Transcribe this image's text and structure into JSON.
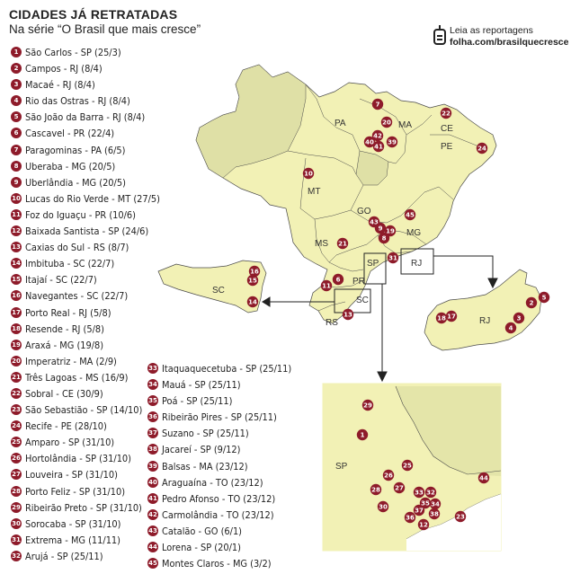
{
  "header": {
    "title": "CIDADES JÁ RETRATADAS",
    "subtitle": "Na série “O Brasil que mais cresce”",
    "link_label": "Leia as reportagens",
    "link_url": "folha.com/brasilquecresce"
  },
  "colors": {
    "marker": "#8e1b2a",
    "land": "#f2f1b5",
    "shade": "#e5e6ad",
    "stroke": "#3d3d3d"
  },
  "cities_left": [
    {
      "n": "1",
      "label": "São Carlos - SP (25/3)"
    },
    {
      "n": "2",
      "label": "Campos - RJ (8/4)"
    },
    {
      "n": "3",
      "label": "Macaé - RJ (8/4)"
    },
    {
      "n": "4",
      "label": "Rio das Ostras - RJ (8/4)"
    },
    {
      "n": "5",
      "label": "São João da Barra - RJ (8/4)"
    },
    {
      "n": "6",
      "label": "Cascavel - PR (22/4)"
    },
    {
      "n": "7",
      "label": "Paragominas - PA (6/5)"
    },
    {
      "n": "8",
      "label": "Uberaba - MG (20/5)"
    },
    {
      "n": "9",
      "label": "Uberlândia - MG (20/5)"
    },
    {
      "n": "10",
      "label": "Lucas do Rio Verde - MT (27/5)"
    },
    {
      "n": "11",
      "label": "Foz do Iguaçu - PR (10/6)"
    },
    {
      "n": "12",
      "label": "Baixada Santista - SP (24/6)"
    },
    {
      "n": "13",
      "label": "Caxias do Sul - RS (8/7)"
    },
    {
      "n": "14",
      "label": "Imbituba - SC (22/7)"
    },
    {
      "n": "15",
      "label": "Itajaí  - SC (22/7)"
    },
    {
      "n": "16",
      "label": "Navegantes - SC (22/7)"
    },
    {
      "n": "17",
      "label": "Porto Real - RJ (5/8)"
    },
    {
      "n": "18",
      "label": "Resende - RJ (5/8)"
    },
    {
      "n": "19",
      "label": "Araxá - MG (19/8)"
    },
    {
      "n": "20",
      "label": "Imperatriz - MA (2/9)"
    },
    {
      "n": "21",
      "label": "Três Lagoas - MS (16/9)"
    },
    {
      "n": "22",
      "label": "Sobral - CE (30/9)"
    },
    {
      "n": "23",
      "label": "São Sebastião - SP (14/10)"
    },
    {
      "n": "24",
      "label": "Recife - PE (28/10)"
    },
    {
      "n": "25",
      "label": "Amparo - SP (31/10)"
    },
    {
      "n": "26",
      "label": "Hortolândia - SP (31/10)"
    },
    {
      "n": "27",
      "label": "Louveira - SP (31/10)"
    },
    {
      "n": "28",
      "label": "Porto Feliz - SP (31/10)"
    },
    {
      "n": "29",
      "label": "Ribeirão Preto - SP (31/10)"
    },
    {
      "n": "30",
      "label": "Sorocaba - SP (31/10)"
    },
    {
      "n": "31",
      "label": "Extrema - MG (11/11)"
    },
    {
      "n": "32",
      "label": "Arujá - SP (25/11)"
    }
  ],
  "cities_right": [
    {
      "n": "33",
      "label": "Itaquaquecetuba - SP (25/11)"
    },
    {
      "n": "34",
      "label": "Mauá - SP (25/11)"
    },
    {
      "n": "35",
      "label": "Poá - SP (25/11)"
    },
    {
      "n": "36",
      "label": "Ribeirão Pires - SP (25/11)"
    },
    {
      "n": "37",
      "label": "Suzano - SP (25/11)"
    },
    {
      "n": "38",
      "label": "Jacareí - SP (9/12)"
    },
    {
      "n": "39",
      "label": "Balsas - MA (23/12)"
    },
    {
      "n": "40",
      "label": "Araguaína - TO (23/12)"
    },
    {
      "n": "41",
      "label": "Pedro Afonso - TO (23/12)"
    },
    {
      "n": "42",
      "label": "Carmolândia - TO (23/12)"
    },
    {
      "n": "43",
      "label": "Catalão - GO (6/1)"
    },
    {
      "n": "44",
      "label": "Lorena - SP (20/1)"
    },
    {
      "n": "45",
      "label": "Montes Claros - MG (3/2)"
    }
  ],
  "map": {
    "state_labels": {
      "PA": "PA",
      "MA": "MA",
      "CE": "CE",
      "PE": "PE",
      "MT": "MT",
      "GO": "GO",
      "MG": "MG",
      "MS": "MS",
      "SP": "SP",
      "PR": "PR",
      "SC": "SC",
      "RS": "RS",
      "RJ": "RJ"
    },
    "inset_labels": {
      "sc": "SC",
      "rj": "RJ",
      "sp": "SP"
    },
    "markers_brazil": [
      "7",
      "20",
      "22",
      "42",
      "40",
      "41",
      "39",
      "24",
      "10",
      "45",
      "43",
      "9",
      "19",
      "8",
      "21",
      "6",
      "11",
      "31",
      "13"
    ],
    "markers_sc": [
      "16",
      "15",
      "14"
    ],
    "markers_rj": [
      "2",
      "5",
      "3",
      "4",
      "18",
      "17"
    ],
    "markers_sp": [
      "29",
      "1",
      "25",
      "26",
      "27",
      "28",
      "33",
      "32",
      "35",
      "34",
      "30",
      "36",
      "37",
      "38",
      "12",
      "23",
      "44"
    ]
  }
}
